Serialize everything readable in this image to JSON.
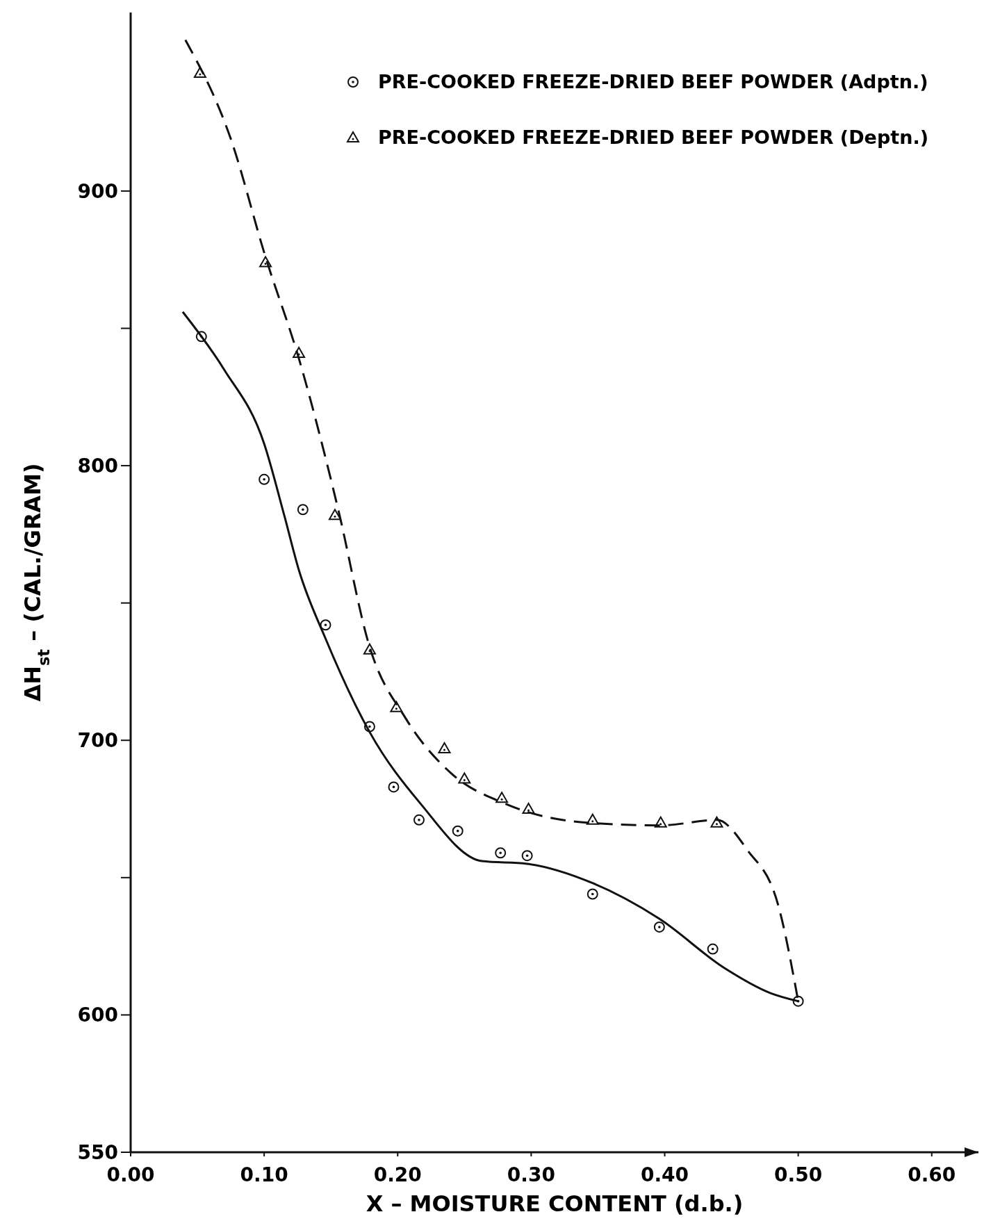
{
  "chart_data": {
    "type": "scatter",
    "xlabel": "X – MOISTURE CONTENT (d.b.)",
    "ylabel": "ΔH$_{st}$ – (CAL./GRAM)",
    "xlim": [
      0,
      0.635
    ],
    "ylim": [
      550,
      965
    ],
    "xticks": [
      {
        "value": 0,
        "label": "0.00"
      },
      {
        "value": 0.1,
        "label": "0.10"
      },
      {
        "value": 0.2,
        "label": "0.20"
      },
      {
        "value": 0.3,
        "label": "0.30"
      },
      {
        "value": 0.4,
        "label": "0.40"
      },
      {
        "value": 0.5,
        "label": "0.50"
      },
      {
        "value": 0.6,
        "label": "0.60"
      }
    ],
    "yticks": [
      550,
      600,
      {
        "value": 650,
        "label": null
      },
      700,
      {
        "value": 750,
        "label": null
      },
      800,
      {
        "value": 850,
        "label": null
      },
      900
    ],
    "grid": false,
    "legend": "top right",
    "series": [
      {
        "name": "PRE-COOKED FREEZE-DRIED BEEF POWDER (Adptn.)",
        "color": "#111111",
        "marker": "circle",
        "x": [
          0.053,
          0.1,
          0.129,
          0.146,
          0.179,
          0.197,
          0.216,
          0.245,
          0.277,
          0.297,
          0.346,
          0.396,
          0.436,
          0.5
        ],
        "values": [
          847,
          795,
          784,
          742,
          705,
          683,
          671,
          667,
          659,
          658,
          644,
          632,
          624,
          605
        ]
      },
      {
        "name": "PRE-COOKED FREEZE-DRIED BEEF POWDER (Deptn.)",
        "color": "#111111",
        "marker": "triangle",
        "x": [
          0.052,
          0.101,
          0.126,
          0.153,
          0.179,
          0.199,
          0.235,
          0.25,
          0.278,
          0.298,
          0.346,
          0.397,
          0.439
        ],
        "values": [
          943,
          874,
          841,
          782,
          733,
          712,
          697,
          686,
          679,
          675,
          671,
          670,
          670
        ]
      },
      {
        "type": "line",
        "color": "#111111",
        "marker": "none",
        "line_style": "solid",
        "x": [
          0.039,
          0.07,
          0.1,
          0.115,
          0.126,
          0.146,
          0.179,
          0.217,
          0.263,
          0.297,
          0.346,
          0.396,
          0.445,
          0.479,
          0.5
        ],
        "values": [
          856,
          835,
          808,
          782,
          762,
          737,
          703,
          677,
          656,
          655,
          648,
          635,
          617,
          608,
          605
        ]
      },
      {
        "type": "line",
        "color": "#111111",
        "marker": "none",
        "line_style": "dashed",
        "x": [
          0.041,
          0.075,
          0.101,
          0.126,
          0.155,
          0.179,
          0.206,
          0.24,
          0.28,
          0.342,
          0.397,
          0.439,
          0.462,
          0.485,
          0.5
        ],
        "values": [
          955,
          919,
          876,
          839,
          785,
          734,
          708,
          688,
          677,
          670,
          669,
          671,
          660,
          640,
          605
        ]
      }
    ]
  }
}
